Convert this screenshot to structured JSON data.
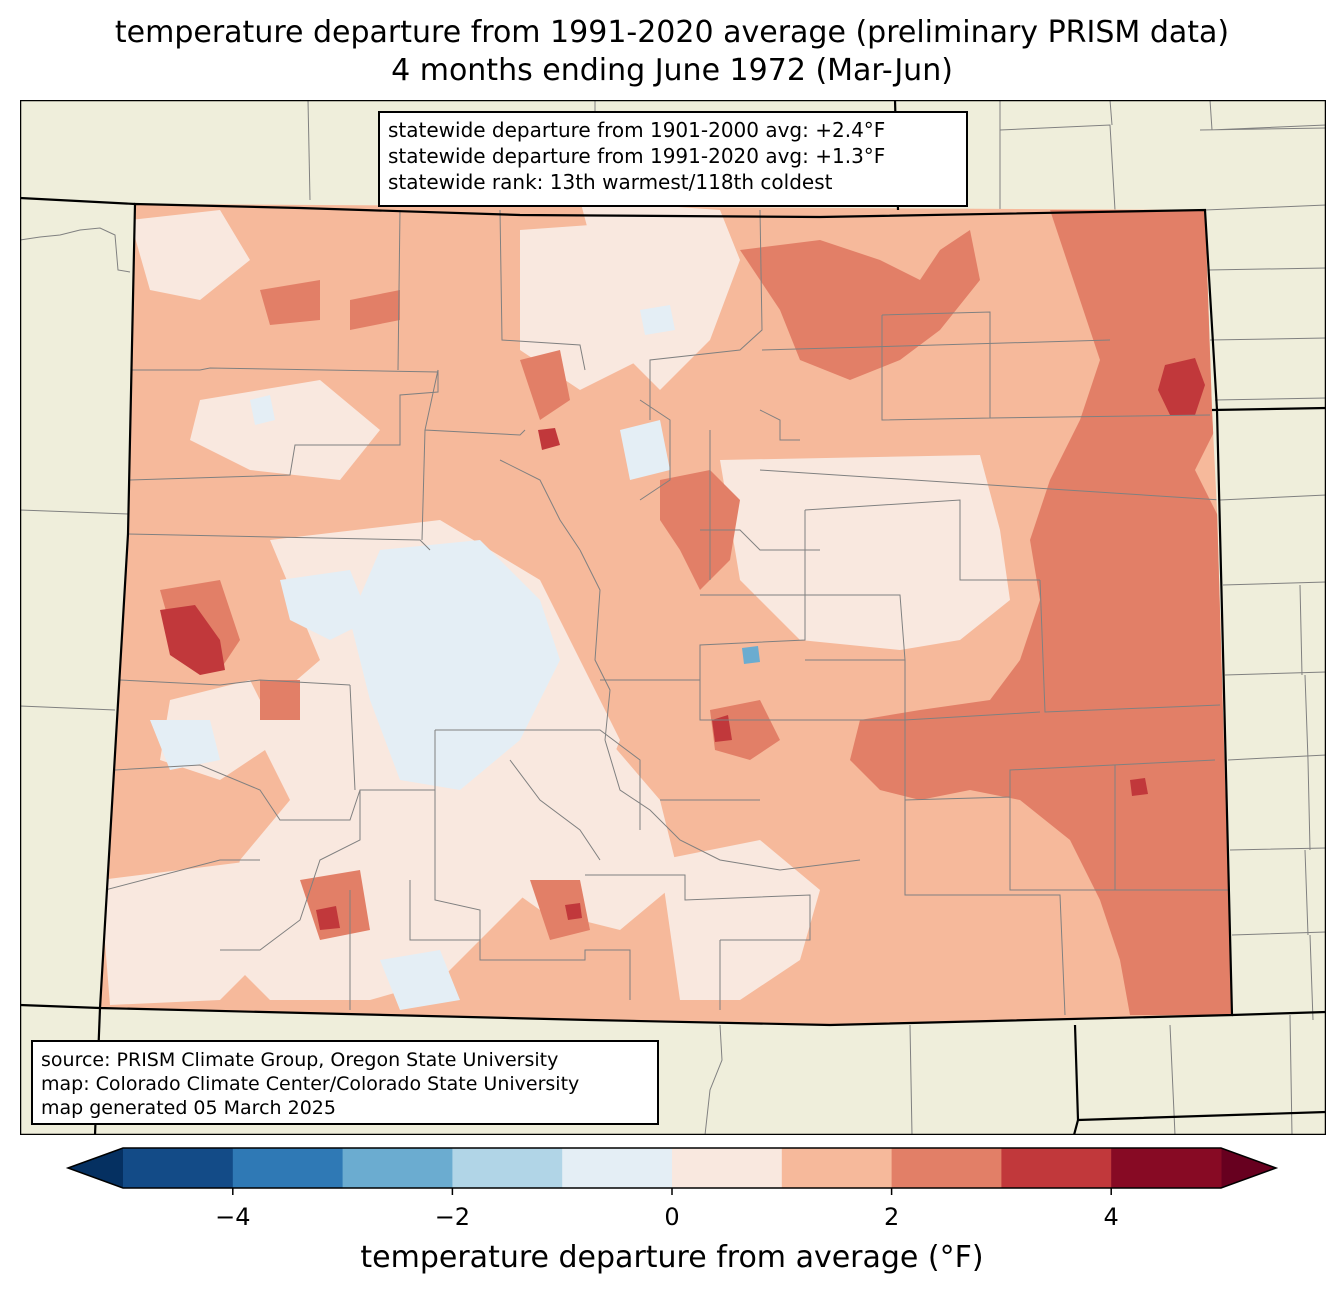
{
  "title": {
    "line1": "temperature departure from 1991-2020 average (preliminary PRISM data)",
    "line2": "4 months ending June 1972 (Mar-Jun)"
  },
  "stats": {
    "line1": "statewide departure from 1901-2000 avg: +2.4°F",
    "line2": "statewide departure from 1991-2020 avg: +1.3°F",
    "line3": "statewide rank: 13th warmest/118th coldest"
  },
  "credits": {
    "line1": "source: PRISM Climate Group, Oregon State University",
    "line2": "map: Colorado Climate Center/Colorado State University",
    "line3": "map generated 05 March 2025"
  },
  "colorbar": {
    "label": "temperature departure from average (°F)",
    "ticks": [
      "−4",
      "−2",
      "0",
      "2",
      "4"
    ],
    "tick_values": [
      -4,
      -2,
      0,
      2,
      4
    ],
    "range": [
      -5,
      5
    ],
    "bins": [
      {
        "from": -5,
        "to": -4,
        "color": "#134b87"
      },
      {
        "from": -4,
        "to": -3,
        "color": "#2f79b5"
      },
      {
        "from": -3,
        "to": -2,
        "color": "#6bacd0"
      },
      {
        "from": -2,
        "to": -1,
        "color": "#b1d5e7"
      },
      {
        "from": -1,
        "to": 0,
        "color": "#e4eef5"
      },
      {
        "from": 0,
        "to": 1,
        "color": "#f9e8df"
      },
      {
        "from": 1,
        "to": 2,
        "color": "#f6b99b"
      },
      {
        "from": 2,
        "to": 3,
        "color": "#e27f67"
      },
      {
        "from": 3,
        "to": 4,
        "color": "#c1383b"
      },
      {
        "from": 4,
        "to": 5,
        "color": "#870a24"
      }
    ],
    "extend_low_color": "#053061",
    "extend_high_color": "#67001f"
  },
  "colors": {
    "land_background": "#efeedb",
    "county_lines": "#808080",
    "state_lines": "#000000"
  }
}
